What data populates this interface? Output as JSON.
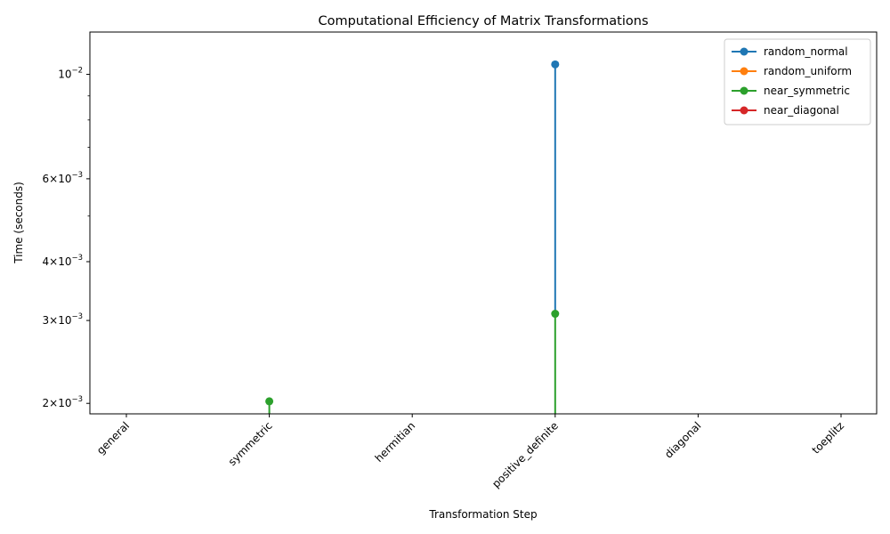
{
  "chart_data": {
    "type": "line",
    "title": "Computational Efficiency of Matrix Transformations",
    "xlabel": "Transformation Step",
    "ylabel": "Time (seconds)",
    "categories": [
      "general",
      "symmetric",
      "hermitian",
      "positive_definite",
      "diagonal",
      "toeplitz"
    ],
    "yscale": "log",
    "ylim": [
      0.0019,
      0.0123
    ],
    "y_ticks": [
      {
        "value": 0.002,
        "mantissa": "2",
        "exp": "−3"
      },
      {
        "value": 0.003,
        "mantissa": "3",
        "exp": "−3"
      },
      {
        "value": 0.004,
        "mantissa": "4",
        "exp": "−3"
      },
      {
        "value": 0.006,
        "mantissa": "6",
        "exp": "−3"
      },
      {
        "value": 0.01,
        "mantissa": "",
        "exp": "−2"
      }
    ],
    "y_minor_ticks": [
      0.005,
      0.007,
      0.008,
      0.009
    ],
    "legend_position": "top-right",
    "grid": false,
    "series": [
      {
        "name": "random_normal",
        "color": "#1f77b4",
        "segments": [
          {
            "points": [
              {
                "x": "positive_definite",
                "y": 0.0105
              },
              {
                "x": "positive_definite",
                "y": 0.0031
              }
            ]
          }
        ],
        "markers": [
          {
            "x": "positive_definite",
            "y": 0.0105
          }
        ]
      },
      {
        "name": "random_uniform",
        "color": "#ff7f0e",
        "segments": [],
        "markers": []
      },
      {
        "name": "near_symmetric",
        "color": "#2ca02c",
        "segments": [
          {
            "points": [
              {
                "x": "symmetric",
                "y": 0.00202
              },
              {
                "x": "symmetric",
                "y": 0.0019
              }
            ]
          },
          {
            "points": [
              {
                "x": "positive_definite",
                "y": 0.0031
              },
              {
                "x": "positive_definite",
                "y": 0.0019
              }
            ]
          }
        ],
        "markers": [
          {
            "x": "symmetric",
            "y": 0.00202
          },
          {
            "x": "positive_definite",
            "y": 0.0031
          }
        ]
      },
      {
        "name": "near_diagonal",
        "color": "#d62728",
        "segments": [],
        "markers": []
      }
    ]
  }
}
